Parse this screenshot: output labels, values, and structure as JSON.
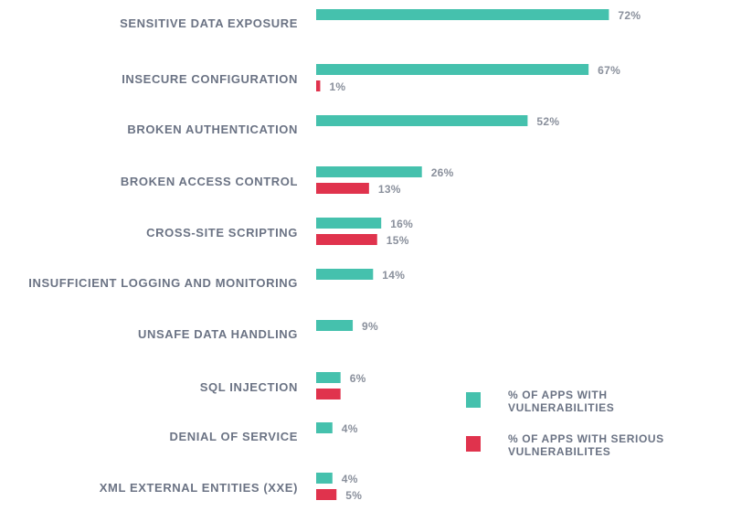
{
  "chart_data": {
    "type": "bar",
    "orientation": "horizontal",
    "title": "",
    "xlabel": "",
    "ylabel": "",
    "xlim": [
      0,
      100
    ],
    "grid": false,
    "value_suffix": "%",
    "categories": [
      "SENSITIVE DATA EXPOSURE",
      "INSECURE CONFIGURATION",
      "BROKEN AUTHENTICATION",
      "BROKEN ACCESS CONTROL",
      "CROSS-SITE SCRIPTING",
      "INSUFFICIENT LOGGING AND MONITORING",
      "UNSAFE DATA HANDLING",
      "SQL INJECTION",
      "DENIAL OF SERVICE",
      "XML EXTERNAL ENTITIES (XXE)"
    ],
    "series": [
      {
        "name": "% OF APPS WITH VULNERABILITIES",
        "legend_lines": [
          "% OF APPS WITH",
          "VULNERABILITIES"
        ],
        "color": "#45c1ad",
        "values": [
          72,
          67,
          52,
          26,
          16,
          14,
          9,
          6,
          4,
          4
        ],
        "labels": [
          true,
          true,
          true,
          true,
          true,
          true,
          true,
          true,
          true,
          true
        ]
      },
      {
        "name": "% OF APPS WITH SERIOUS VULNERABILITES",
        "legend_lines": [
          "% OF APPS WITH SERIOUS",
          "VULNERABILITES"
        ],
        "color": "#e0334d",
        "values": [
          null,
          1,
          null,
          13,
          15,
          null,
          null,
          6,
          null,
          5
        ],
        "labels": [
          false,
          true,
          false,
          true,
          true,
          false,
          false,
          false,
          false,
          true
        ]
      }
    ],
    "legend_position": "bottom-right"
  }
}
